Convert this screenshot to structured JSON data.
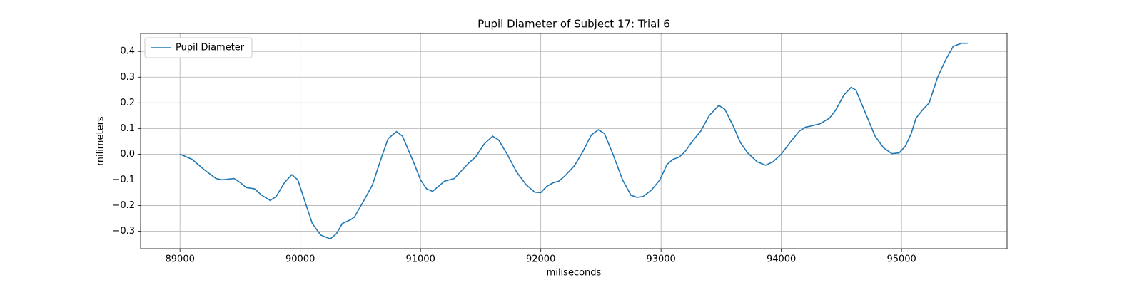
{
  "chart_data": {
    "type": "line",
    "title": "Pupil Diameter of Subject 17: Trial 6",
    "xlabel": "miliseconds",
    "ylabel": "milimeters",
    "x": [
      89000,
      89100,
      89200,
      89300,
      89350,
      89450,
      89500,
      89550,
      89620,
      89680,
      89750,
      89800,
      89870,
      89930,
      89980,
      90050,
      90100,
      90170,
      90250,
      90300,
      90350,
      90420,
      90450,
      90530,
      90600,
      90670,
      90730,
      90800,
      90850,
      90950,
      91000,
      91050,
      91100,
      91150,
      91200,
      91280,
      91350,
      91400,
      91460,
      91530,
      91600,
      91650,
      91720,
      91800,
      91880,
      91950,
      92000,
      92050,
      92100,
      92150,
      92200,
      92280,
      92350,
      92420,
      92480,
      92530,
      92600,
      92680,
      92750,
      92800,
      92850,
      92920,
      92990,
      93050,
      93100,
      93150,
      93200,
      93260,
      93330,
      93400,
      93480,
      93530,
      93600,
      93660,
      93720,
      93800,
      93870,
      93930,
      94000,
      94080,
      94150,
      94200,
      94250,
      94320,
      94400,
      94450,
      94520,
      94580,
      94620,
      94700,
      94780,
      94850,
      94920,
      94980,
      95030,
      95080,
      95120,
      95180,
      95230,
      95300,
      95370,
      95430,
      95500,
      95550
    ],
    "series": [
      {
        "name": "Pupil Diameter",
        "color": "#1f77b4",
        "values": [
          0,
          -0.02,
          -0.06,
          -0.095,
          -0.1,
          -0.095,
          -0.11,
          -0.13,
          -0.135,
          -0.16,
          -0.18,
          -0.165,
          -0.11,
          -0.08,
          -0.1,
          -0.2,
          -0.27,
          -0.315,
          -0.33,
          -0.31,
          -0.27,
          -0.255,
          -0.245,
          -0.18,
          -0.12,
          -0.02,
          0.06,
          0.088,
          0.07,
          -0.04,
          -0.1,
          -0.135,
          -0.145,
          -0.125,
          -0.105,
          -0.095,
          -0.06,
          -0.035,
          -0.01,
          0.04,
          0.07,
          0.055,
          0,
          -0.07,
          -0.12,
          -0.148,
          -0.15,
          -0.125,
          -0.112,
          -0.105,
          -0.085,
          -0.045,
          0.01,
          0.075,
          0.095,
          0.08,
          0,
          -0.1,
          -0.16,
          -0.168,
          -0.165,
          -0.14,
          -0.1,
          -0.04,
          -0.02,
          -0.012,
          0.01,
          0.05,
          0.09,
          0.15,
          0.19,
          0.175,
          0.11,
          0.045,
          0.005,
          -0.03,
          -0.043,
          -0.03,
          0,
          0.05,
          0.09,
          0.105,
          0.11,
          0.118,
          0.14,
          0.17,
          0.23,
          0.26,
          0.25,
          0.16,
          0.07,
          0.025,
          0.002,
          0.005,
          0.03,
          0.08,
          0.14,
          0.175,
          0.2,
          0.3,
          0.37,
          0.42,
          0.432,
          0.432
        ]
      }
    ],
    "xlim": [
      88672.5,
      95877.5
    ],
    "ylim": [
      -0.368,
      0.47
    ],
    "xticks": [
      89000,
      90000,
      91000,
      92000,
      93000,
      94000,
      95000
    ],
    "yticks": [
      {
        "value": -0.3,
        "label": "−0.3"
      },
      {
        "value": -0.2,
        "label": "−0.2"
      },
      {
        "value": -0.1,
        "label": "−0.1"
      },
      {
        "value": 0,
        "label": "0.0"
      },
      0.1,
      0.2,
      0.3,
      0.4
    ],
    "grid": true,
    "legend": "upper left"
  }
}
